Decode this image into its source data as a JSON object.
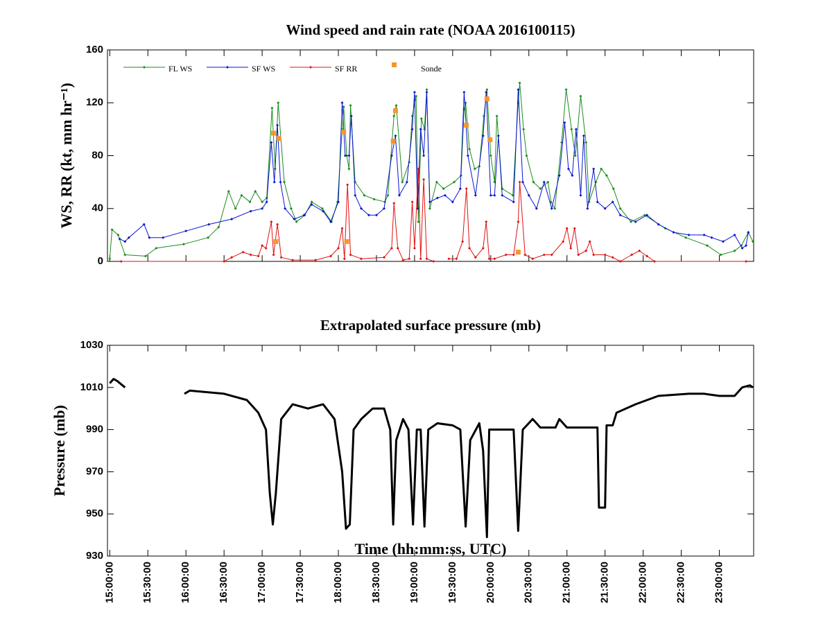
{
  "chart_data": [
    {
      "type": "line",
      "title": "Wind speed and rain rate (NOAA 2016100115)",
      "ylabel": "WS, RR (kt, mm hr⁻¹)",
      "xlim": [
        14.97,
        23.45
      ],
      "ylim": [
        0,
        160
      ],
      "yticks": [
        0,
        40,
        80,
        120,
        160
      ],
      "legend": true,
      "series": [
        {
          "name": "FL WS",
          "color": "#1a8c1a",
          "x": [
            15.0,
            15.03,
            15.11,
            15.2,
            15.47,
            15.61,
            15.97,
            16.29,
            16.43,
            16.56,
            16.65,
            16.73,
            16.84,
            16.91,
            17.0,
            17.06,
            17.13,
            17.17,
            17.21,
            17.29,
            17.38,
            17.45,
            17.56,
            17.65,
            17.79,
            17.91,
            17.99,
            18.05,
            18.07,
            18.11,
            18.14,
            18.16,
            18.22,
            18.34,
            18.47,
            18.61,
            18.65,
            18.73,
            18.76,
            18.84,
            18.93,
            18.97,
            19.02,
            19.05,
            19.09,
            19.13,
            19.16,
            19.2,
            19.29,
            19.38,
            19.52,
            19.61,
            19.65,
            19.67,
            19.72,
            19.79,
            19.85,
            19.91,
            19.95,
            20.0,
            20.05,
            20.08,
            20.15,
            20.29,
            20.36,
            20.38,
            20.43,
            20.47,
            20.56,
            20.65,
            20.75,
            20.79,
            20.84,
            20.93,
            20.99,
            21.06,
            21.11,
            21.18,
            21.25,
            21.29,
            21.38,
            21.45,
            21.52,
            21.61,
            21.7,
            21.84,
            22.02,
            22.29,
            22.56,
            22.84,
            23.02,
            23.2,
            23.29,
            23.38,
            23.44
          ],
          "values": [
            2,
            24,
            20,
            5,
            4,
            10,
            13,
            18,
            26,
            53,
            40,
            50,
            45,
            53,
            45,
            48,
            116,
            70,
            120,
            60,
            40,
            30,
            35,
            45,
            40,
            30,
            45,
            100,
            117,
            80,
            70,
            118,
            60,
            50,
            47,
            45,
            50,
            110,
            118,
            60,
            75,
            110,
            125,
            30,
            108,
            100,
            130,
            40,
            60,
            55,
            60,
            65,
            115,
            120,
            85,
            70,
            72,
            110,
            130,
            80,
            60,
            110,
            55,
            50,
            120,
            135,
            100,
            80,
            60,
            55,
            60,
            45,
            40,
            90,
            130,
            100,
            80,
            125,
            90,
            45,
            60,
            70,
            65,
            55,
            40,
            30,
            35,
            25,
            18,
            12,
            5,
            8,
            12,
            22,
            15
          ]
        },
        {
          "name": "SF WS",
          "color": "#0a14d2",
          "x": [
            15.13,
            15.2,
            15.25,
            15.45,
            15.52,
            15.7,
            16.0,
            16.3,
            16.6,
            16.85,
            17.0,
            17.06,
            17.12,
            17.16,
            17.2,
            17.24,
            17.3,
            17.42,
            17.55,
            17.65,
            17.8,
            17.9,
            18.0,
            18.05,
            18.09,
            18.14,
            18.17,
            18.22,
            18.3,
            18.4,
            18.5,
            18.6,
            18.7,
            18.75,
            18.8,
            18.9,
            18.97,
            19.0,
            19.04,
            19.08,
            19.12,
            19.16,
            19.2,
            19.3,
            19.4,
            19.5,
            19.6,
            19.65,
            19.7,
            19.8,
            19.9,
            19.94,
            20.0,
            20.05,
            20.1,
            20.15,
            20.3,
            20.36,
            20.42,
            20.5,
            20.6,
            20.7,
            20.8,
            20.9,
            20.97,
            21.02,
            21.07,
            21.12,
            21.18,
            21.22,
            21.27,
            21.35,
            21.4,
            21.5,
            21.6,
            21.7,
            21.9,
            22.05,
            22.2,
            22.4,
            22.6,
            22.8,
            22.9,
            23.05,
            23.2,
            23.3,
            23.35,
            23.38
          ],
          "values": [
            17,
            15,
            18,
            28,
            18,
            18,
            23,
            28,
            32,
            38,
            40,
            45,
            90,
            60,
            103,
            60,
            40,
            32,
            35,
            43,
            38,
            30,
            45,
            120,
            80,
            80,
            110,
            50,
            40,
            35,
            35,
            40,
            80,
            95,
            50,
            60,
            100,
            128,
            40,
            100,
            80,
            128,
            45,
            48,
            50,
            45,
            55,
            128,
            80,
            50,
            95,
            128,
            50,
            50,
            95,
            50,
            45,
            130,
            60,
            50,
            40,
            60,
            40,
            65,
            105,
            70,
            65,
            100,
            50,
            95,
            40,
            70,
            45,
            40,
            45,
            35,
            30,
            35,
            28,
            22,
            20,
            20,
            18,
            15,
            20,
            10,
            12,
            22
          ]
        },
        {
          "name": "SF RR",
          "color": "#e01010",
          "x": [
            15.15,
            16.5,
            16.6,
            16.75,
            16.85,
            16.95,
            17.0,
            17.05,
            17.12,
            17.15,
            17.2,
            17.25,
            17.4,
            17.7,
            17.9,
            18.0,
            18.05,
            18.08,
            18.12,
            18.16,
            18.3,
            18.6,
            18.7,
            18.73,
            18.78,
            18.85,
            18.93,
            18.97,
            19.0,
            19.05,
            19.08,
            19.12,
            19.16,
            19.25,
            19.35,
            19.45,
            19.55,
            19.63,
            19.68,
            19.72,
            19.8,
            19.9,
            19.94,
            19.98,
            20.05,
            20.2,
            20.3,
            20.36,
            20.38,
            20.45,
            20.55,
            20.7,
            20.8,
            20.95,
            21.0,
            21.05,
            21.1,
            21.15,
            21.25,
            21.3,
            21.35,
            21.5,
            21.6,
            21.7,
            21.85,
            21.95,
            22.05,
            22.15,
            23.35
          ],
          "values": [
            0,
            0,
            3,
            7,
            5,
            4,
            12,
            10,
            30,
            5,
            28,
            3,
            1,
            1,
            4,
            10,
            25,
            2,
            58,
            5,
            2,
            3,
            10,
            44,
            10,
            1,
            2,
            45,
            10,
            70,
            2,
            62,
            2,
            0,
            null,
            2,
            2,
            15,
            55,
            10,
            3,
            10,
            30,
            2,
            2,
            5,
            5,
            30,
            60,
            5,
            2,
            5,
            5,
            15,
            25,
            10,
            25,
            5,
            8,
            15,
            5,
            5,
            3,
            0,
            5,
            8,
            4,
            0,
            0
          ]
        },
        {
          "name": "Sonde",
          "color": "#f5962d",
          "marker": "square",
          "x": [
            17.15,
            17.18,
            17.22,
            18.07,
            18.11,
            18.72,
            18.75,
            19.68,
            19.95,
            19.99,
            20.36
          ],
          "values": [
            97,
            15,
            93,
            98,
            15,
            91,
            114,
            103,
            123,
            92,
            7
          ]
        }
      ]
    },
    {
      "type": "line",
      "title": "Extrapolated surface pressure (mb)",
      "xlabel": "Time (hh:mm:ss, UTC)",
      "ylabel": "Pressure (mb)",
      "color": "#000000",
      "xlim": [
        14.97,
        23.45
      ],
      "ylim": [
        930,
        1030
      ],
      "yticks": [
        930,
        950,
        970,
        990,
        1010,
        1030
      ],
      "xticks": [
        {
          "value": 15,
          "label": "15:00:00"
        },
        {
          "value": 15.5,
          "label": "15:30:00"
        },
        {
          "value": 16,
          "label": "16:00:00"
        },
        {
          "value": 16.5,
          "label": "16:30:00"
        },
        {
          "value": 17,
          "label": "17:00:00"
        },
        {
          "value": 17.5,
          "label": "17:30:00"
        },
        {
          "value": 18,
          "label": "18:00:00"
        },
        {
          "value": 18.5,
          "label": "18:30:00"
        },
        {
          "value": 19,
          "label": "19:00:00"
        },
        {
          "value": 19.5,
          "label": "19:30:00"
        },
        {
          "value": 20,
          "label": "20:00:00"
        },
        {
          "value": 20.5,
          "label": "20:30:00"
        },
        {
          "value": 21,
          "label": "21:00:00"
        },
        {
          "value": 21.5,
          "label": "21:30:00"
        },
        {
          "value": 22,
          "label": "22:00:00"
        },
        {
          "value": 22.5,
          "label": "22:30:00"
        },
        {
          "value": 23,
          "label": "23:00:00"
        }
      ],
      "x": [
        15.0,
        15.05,
        15.1,
        15.2,
        15.5,
        15.98,
        16.05,
        16.5,
        16.8,
        16.95,
        17.05,
        17.1,
        17.14,
        17.18,
        17.25,
        17.4,
        17.6,
        17.8,
        17.95,
        18.05,
        18.1,
        18.15,
        18.2,
        18.3,
        18.45,
        18.6,
        18.68,
        18.72,
        18.76,
        18.85,
        18.92,
        18.98,
        19.03,
        19.08,
        19.13,
        19.18,
        19.3,
        19.5,
        19.6,
        19.67,
        19.73,
        19.85,
        19.9,
        19.95,
        19.98,
        20.05,
        20.15,
        20.3,
        20.36,
        20.42,
        20.55,
        20.65,
        20.85,
        20.9,
        21.0,
        21.4,
        21.42,
        21.5,
        21.52,
        21.6,
        21.65,
        21.9,
        22.2,
        22.6,
        22.8,
        23.0,
        23.2,
        23.3,
        23.4,
        23.44
      ],
      "values": [
        1012,
        1014,
        1013,
        1010,
        null,
        1007,
        1008.5,
        1007,
        1004,
        998,
        990,
        960,
        945,
        960,
        995,
        1002,
        1000,
        1002,
        995,
        970,
        943,
        945,
        990,
        995,
        1000,
        1000,
        990,
        945,
        985,
        995,
        990,
        945,
        990,
        990,
        944,
        990,
        993,
        992,
        990,
        944,
        985,
        993,
        980,
        939,
        990,
        990,
        990,
        990,
        942,
        990,
        995,
        991,
        991,
        995,
        991,
        991,
        953,
        953,
        992,
        992,
        998,
        1002,
        1006,
        1007,
        1007,
        1006,
        1006,
        1010,
        1011,
        1010
      ]
    }
  ]
}
